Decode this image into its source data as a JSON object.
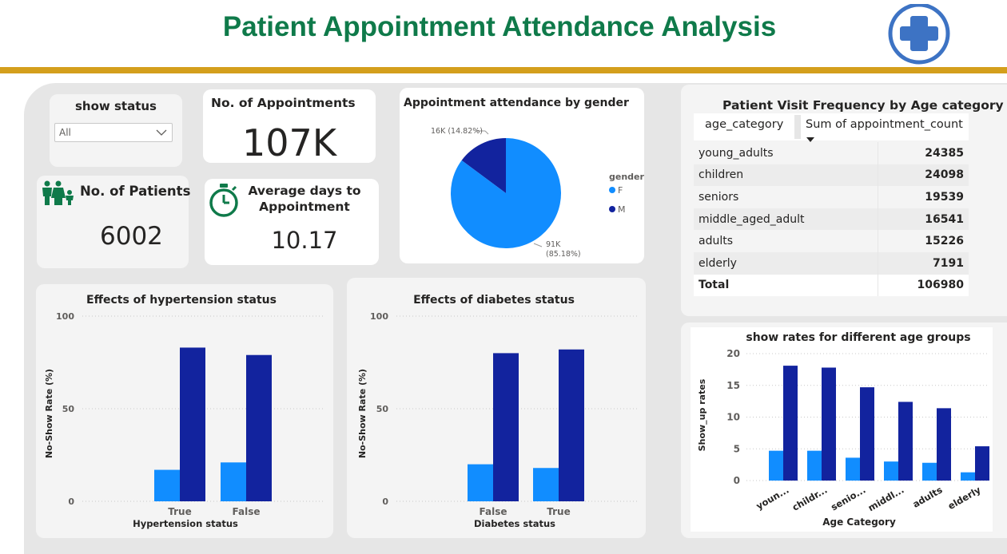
{
  "header": {
    "title": "Patient Appointment Attendance Analysis",
    "logo_icon": "medical-cross-icon"
  },
  "colors": {
    "light_blue": "#118dff",
    "dark_blue": "#12239e",
    "title_green": "#0f7a4a",
    "gold": "#d49f1c"
  },
  "slicer": {
    "title": "show status",
    "selected": "All"
  },
  "kpis": {
    "appointments": {
      "label": "No. of Appointments",
      "value": "107K"
    },
    "patients": {
      "label": "No. of Patients",
      "value": "6002",
      "icon": "family-icon"
    },
    "avg_days": {
      "label_line1": "Average days to",
      "label_line2": "Appointment",
      "value": "10.17",
      "icon": "stopwatch-icon"
    }
  },
  "gender_pie": {
    "title": "Appointment attendance by gender",
    "legend_title": "gender",
    "label_m": "16K (14.82%)",
    "label_f_line1": "91K",
    "label_f_line2": "(85.18%)"
  },
  "age_table": {
    "title": "Patient Visit Frequency by Age category",
    "col1": "age_category",
    "col2": "Sum of appointment_count",
    "rows": [
      {
        "category": "young_adults",
        "count": "24385"
      },
      {
        "category": "children",
        "count": "24098"
      },
      {
        "category": "seniors",
        "count": "19539"
      },
      {
        "category": "middle_aged_adult",
        "count": "16541"
      },
      {
        "category": "adults",
        "count": "15226"
      },
      {
        "category": "elderly",
        "count": "7191"
      }
    ],
    "total_label": "Total",
    "total_value": "106980"
  },
  "hyp_chart": {
    "title": "Effects of hypertension status",
    "xlabel": "Hypertension status",
    "ylabel": "No-Show Rate (%)"
  },
  "dia_chart": {
    "title": "Effects of diabetes status",
    "xlabel": "Diabetes status",
    "ylabel": "No-Show Rate (%)"
  },
  "age_chart": {
    "title": "show rates for different age groups",
    "xlabel": "Age Category",
    "ylabel": "Show_up rates"
  },
  "chart_data": [
    {
      "type": "pie",
      "title": "Appointment attendance by gender",
      "legend_title": "gender",
      "categories": [
        "F",
        "M"
      ],
      "values": [
        85.18,
        14.82
      ],
      "value_labels": [
        "91K",
        "16K"
      ],
      "colors": [
        "#118dff",
        "#12239e"
      ],
      "legend_position": "right"
    },
    {
      "type": "bar",
      "title": "Effects of hypertension status",
      "xlabel": "Hypertension status",
      "ylabel": "No-Show Rate (%)",
      "categories": [
        "True",
        "False"
      ],
      "series": [
        {
          "values": [
            17,
            21
          ],
          "color": "#118dff"
        },
        {
          "values": [
            83,
            79
          ],
          "color": "#12239e"
        }
      ],
      "ylim": [
        0,
        100
      ],
      "yticks": [
        0,
        50,
        100
      ],
      "grid": true
    },
    {
      "type": "bar",
      "title": "Effects of diabetes status",
      "xlabel": "Diabetes status",
      "ylabel": "No-Show Rate (%)",
      "categories": [
        "False",
        "True"
      ],
      "series": [
        {
          "values": [
            20,
            18
          ],
          "color": "#118dff"
        },
        {
          "values": [
            80,
            82
          ],
          "color": "#12239e"
        }
      ],
      "ylim": [
        0,
        100
      ],
      "yticks": [
        0,
        50,
        100
      ],
      "grid": true
    },
    {
      "type": "bar",
      "title": "show rates for different age groups",
      "xlabel": "Age Category",
      "ylabel": "Show_up rates",
      "categories": [
        "youn...",
        "childr...",
        "senio...",
        "middl...",
        "adults",
        "elderly"
      ],
      "series": [
        {
          "values": [
            4.7,
            4.7,
            3.6,
            3.0,
            2.8,
            1.3
          ],
          "color": "#118dff"
        },
        {
          "values": [
            18.1,
            17.8,
            14.7,
            12.4,
            11.4,
            5.4
          ],
          "color": "#12239e"
        }
      ],
      "ylim": [
        0,
        20
      ],
      "yticks": [
        0,
        5,
        10,
        15,
        20
      ],
      "grid": true
    }
  ]
}
